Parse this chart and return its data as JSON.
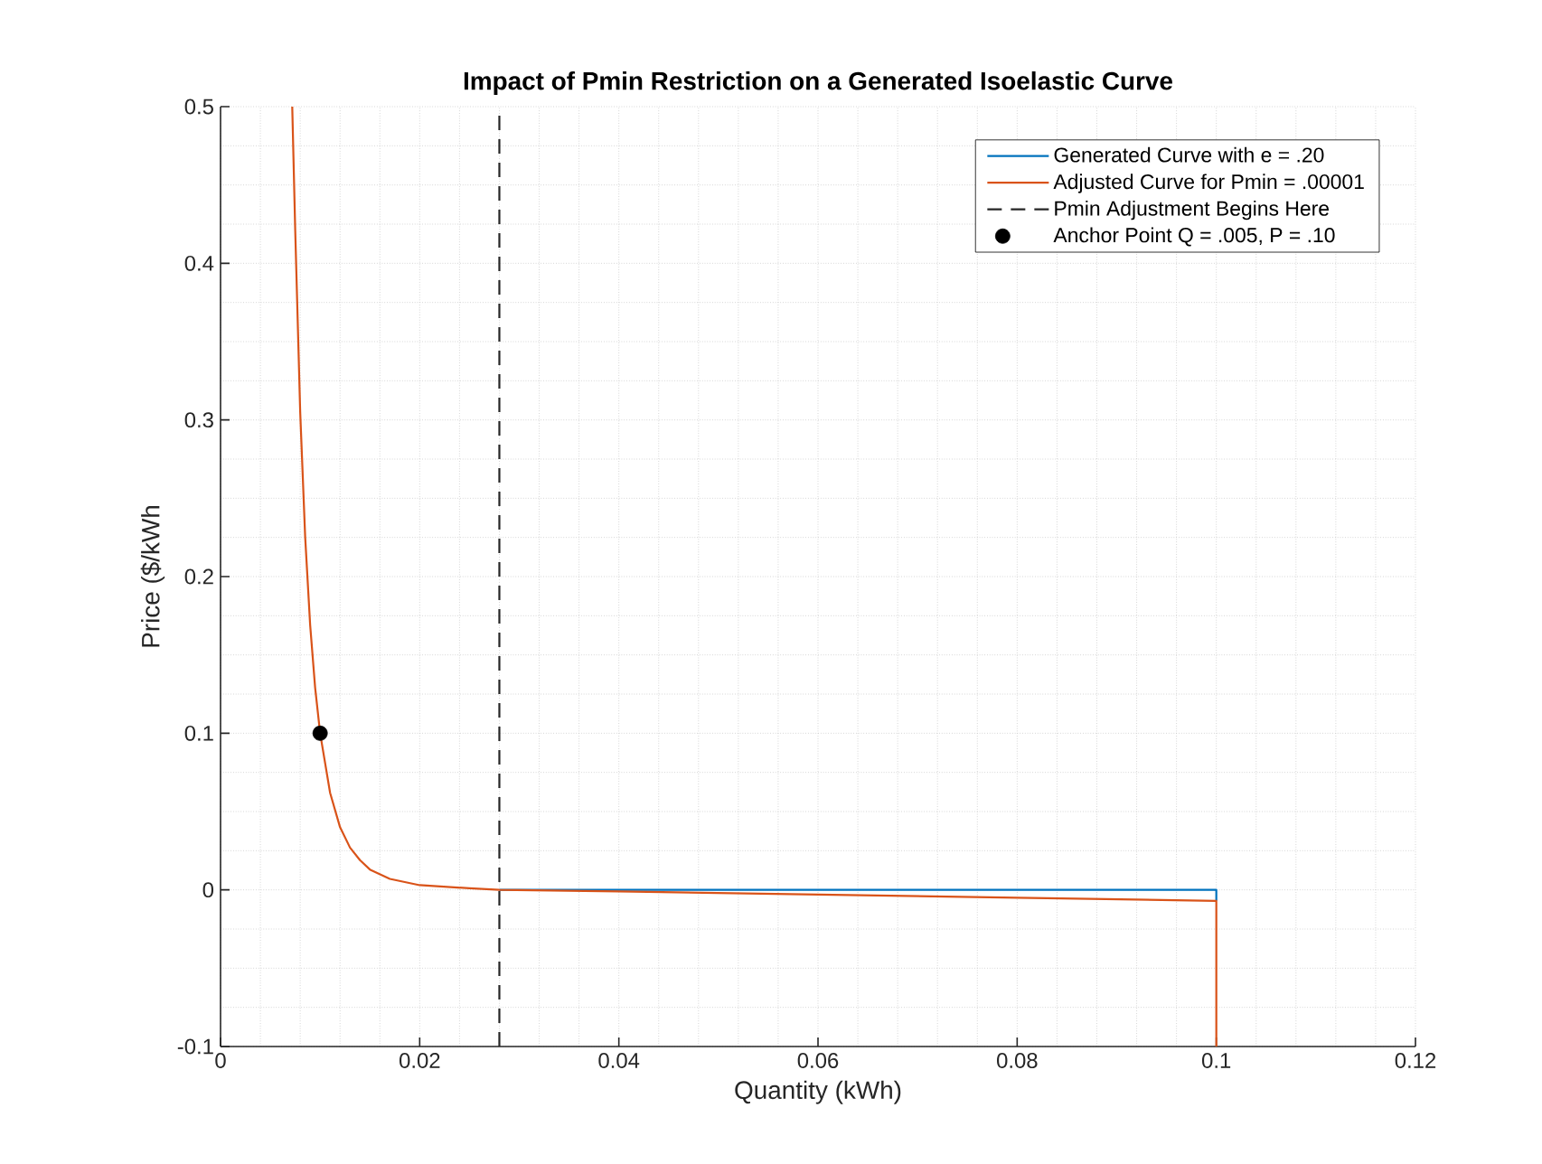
{
  "chart_data": {
    "type": "line",
    "title": "Impact of Pmin Restriction on a Generated Isoelastic Curve",
    "xlabel": "Quantity (kWh)",
    "ylabel": "Price ($/kWh",
    "xlim": [
      0,
      0.12
    ],
    "ylim": [
      -0.1,
      0.5
    ],
    "xticks": [
      0,
      0.02,
      0.04,
      0.06,
      0.08,
      0.1,
      0.12
    ],
    "yticks": [
      -0.1,
      0,
      0.1,
      0.2,
      0.3,
      0.4,
      0.5
    ],
    "grid": true,
    "legend": "top right",
    "line_style": "solid",
    "series": [
      {
        "name": "Generated Curve with e = .20",
        "color": "#0072bd",
        "x": [
          0.028,
          0.06,
          0.1,
          0.1
        ],
        "values": [
          0,
          0,
          0,
          -0.007
        ]
      },
      {
        "name": "Adjusted Curve for Pmin = .00001",
        "color": "#d95319",
        "x": [
          0.0072,
          0.0075,
          0.008,
          0.0085,
          0.009,
          0.0095,
          0.01,
          0.011,
          0.012,
          0.013,
          0.014,
          0.015,
          0.017,
          0.02,
          0.025,
          0.028,
          0.04,
          0.06,
          0.08,
          0.1,
          0.1
        ],
        "values": [
          0.5,
          0.421,
          0.305,
          0.225,
          0.169,
          0.129,
          0.1,
          0.062,
          0.04,
          0.027,
          0.019,
          0.013,
          0.007,
          0.003,
          0.001,
          0,
          -0.001,
          -0.003,
          -0.005,
          -0.007,
          -0.1
        ]
      },
      {
        "name": "Pmin Adjustment Begins Here",
        "color": "#262626",
        "line_style": "dashed",
        "x": [
          0.028,
          0.028
        ],
        "values": [
          -0.1,
          0.5
        ]
      },
      {
        "name": "Anchor Point Q = .005, P = .10",
        "type": "scatter",
        "color": "#000000",
        "x": [
          0.01
        ],
        "values": [
          0.1
        ]
      }
    ]
  }
}
